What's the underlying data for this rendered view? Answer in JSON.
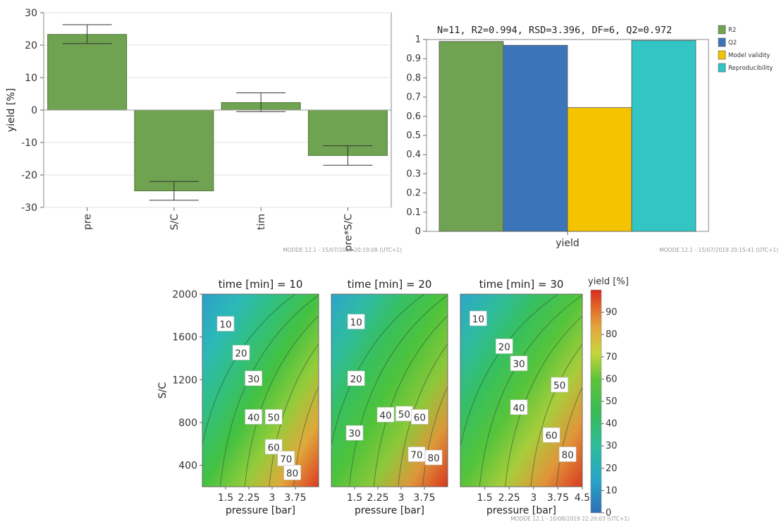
{
  "chart_data": [
    {
      "type": "bar",
      "ylabel": "yield [%]",
      "ylim": [
        -30,
        30
      ],
      "yticks": [
        30,
        20,
        10,
        0,
        -10,
        -20,
        -30
      ],
      "categories": [
        "pre",
        "S/C",
        "tim",
        "pre*S/C"
      ],
      "values": [
        23.3,
        -24.9,
        2.3,
        -14.0
      ],
      "error_low": [
        20.5,
        -27.8,
        -0.5,
        -17.0
      ],
      "error_high": [
        26.3,
        -22.0,
        5.3,
        -11.0
      ],
      "bar_color": "#6fa251",
      "grid": true,
      "footer": "MODDE 12.1 - 15/07/2019 20:19:08 (UTC+1)"
    },
    {
      "type": "bar",
      "title": "N=11, R2=0.994, RSD=3.396, DF=6, Q2=0.972",
      "categories": [
        "yield"
      ],
      "ylim": [
        0,
        1
      ],
      "yticks": [
        "1",
        "0.9",
        "0.8",
        "0.7",
        "0.6",
        "0.5",
        "0.4",
        "0.3",
        "0.2",
        "0.1",
        "0"
      ],
      "series": [
        {
          "name": "R2",
          "values": [
            0.99
          ],
          "color": "#6fa251"
        },
        {
          "name": "Q2",
          "values": [
            0.97
          ],
          "color": "#3b74b8"
        },
        {
          "name": "Model validity",
          "values": [
            0.645
          ],
          "color": "#f5c400"
        },
        {
          "name": "Reproducibility",
          "values": [
            0.995
          ],
          "color": "#33c4c4"
        }
      ],
      "legend": "right",
      "grid": false,
      "footer": "MODDE 12.1 - 15/07/2019 20:15:41 (UTC+1)"
    },
    {
      "type": "heatmap",
      "xlabel": "pressure [bar]",
      "ylabel": "S/C",
      "xlim": [
        0.75,
        4.5
      ],
      "ylim": [
        200,
        2000
      ],
      "yticks": [
        2000,
        1600,
        1200,
        800,
        400
      ],
      "colorbar_label": "yield [%]",
      "colorbar_range": [
        0,
        100
      ],
      "colorbar_ticks": [
        90,
        80,
        70,
        60,
        50,
        40,
        30,
        20,
        10,
        0
      ],
      "contour_levels": [
        10,
        20,
        30,
        40,
        50,
        60,
        70,
        80,
        90
      ],
      "panels": [
        {
          "title": "time [min] = 10",
          "xticks": [
            "1.5",
            "2.25",
            "3",
            "3.75"
          ],
          "labels": [
            {
              "value": "10",
              "x": 1.5,
              "y": 1720
            },
            {
              "value": "20",
              "x": 2.0,
              "y": 1450
            },
            {
              "value": "30",
              "x": 2.4,
              "y": 1210
            },
            {
              "value": "40",
              "x": 2.4,
              "y": 850
            },
            {
              "value": "50",
              "x": 3.05,
              "y": 850
            },
            {
              "value": "60",
              "x": 3.05,
              "y": 570
            },
            {
              "value": "70",
              "x": 3.45,
              "y": 460
            },
            {
              "value": "80",
              "x": 3.65,
              "y": 330
            }
          ]
        },
        {
          "title": "time [min] = 20",
          "xticks": [
            "1.5",
            "2.25",
            "3",
            "3.75"
          ],
          "labels": [
            {
              "value": "10",
              "x": 1.55,
              "y": 1740
            },
            {
              "value": "20",
              "x": 1.55,
              "y": 1210
            },
            {
              "value": "30",
              "x": 1.5,
              "y": 700
            },
            {
              "value": "40",
              "x": 2.5,
              "y": 870
            },
            {
              "value": "50",
              "x": 3.1,
              "y": 880
            },
            {
              "value": "60",
              "x": 3.6,
              "y": 850
            },
            {
              "value": "70",
              "x": 3.5,
              "y": 500
            },
            {
              "value": "80",
              "x": 4.05,
              "y": 470
            }
          ]
        },
        {
          "title": "time [min] = 30",
          "xticks": [
            "1.5",
            "2.25",
            "3",
            "3.75",
            "4.5"
          ],
          "labels": [
            {
              "value": "10",
              "x": 1.3,
              "y": 1770
            },
            {
              "value": "20",
              "x": 2.1,
              "y": 1510
            },
            {
              "value": "30",
              "x": 2.55,
              "y": 1350
            },
            {
              "value": "40",
              "x": 2.55,
              "y": 940
            },
            {
              "value": "50",
              "x": 3.8,
              "y": 1150
            },
            {
              "value": "60",
              "x": 3.55,
              "y": 680
            },
            {
              "value": "80",
              "x": 4.05,
              "y": 500
            }
          ]
        }
      ],
      "footer": "MODDE 12.1 - 10/08/2019 22:20:03 (UTC+1)"
    }
  ]
}
